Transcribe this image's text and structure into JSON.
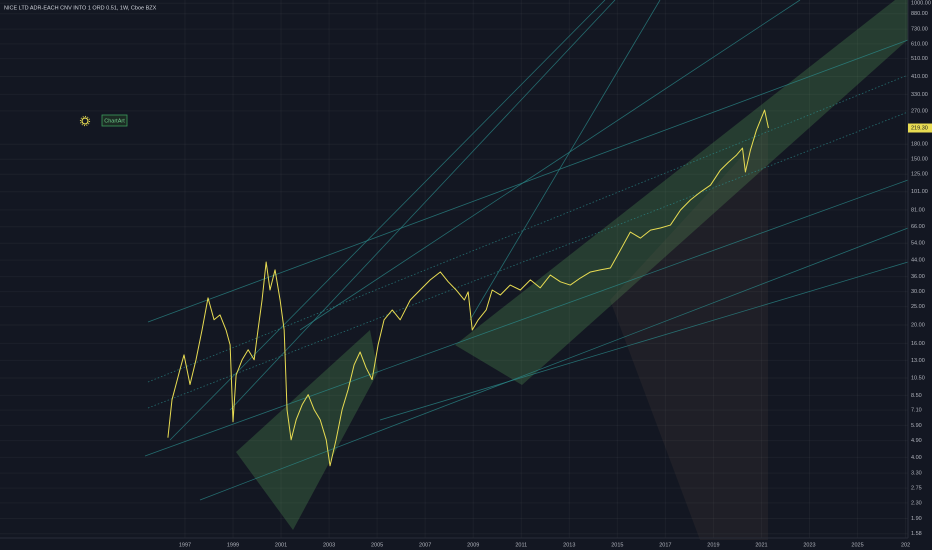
{
  "chart_data": {
    "type": "line",
    "title": "NICE LTD ADR-EACH CNV INTO 1 ORD 0.51, 1W, Cboe BZX",
    "annotation": "ChartArt",
    "color": "#e8dc52",
    "log_scale": true,
    "grid": true,
    "x": [
      1996.29,
      1996.46,
      1996.79,
      1996.96,
      1997.21,
      1997.46,
      1997.71,
      1997.96,
      1998.21,
      1998.46,
      1998.71,
      1998.88,
      1999.0,
      1999.13,
      1999.38,
      1999.63,
      1999.88,
      2000.04,
      2000.21,
      2000.38,
      2000.54,
      2000.75,
      2000.96,
      2001.13,
      2001.25,
      2001.42,
      2001.63,
      2001.88,
      2002.13,
      2002.38,
      2002.63,
      2002.88,
      2003.04,
      2003.29,
      2003.54,
      2003.79,
      2004.04,
      2004.29,
      2004.54,
      2004.79,
      2005.04,
      2005.29,
      2005.63,
      2005.96,
      2006.38,
      2006.79,
      2007.21,
      2007.63,
      2007.96,
      2008.29,
      2008.63,
      2008.79,
      2008.96,
      2009.21,
      2009.54,
      2009.79,
      2010.13,
      2010.54,
      2010.96,
      2011.38,
      2011.79,
      2012.21,
      2012.63,
      2013.04,
      2013.46,
      2013.88,
      2014.29,
      2014.71,
      2015.13,
      2015.54,
      2015.96,
      2016.38,
      2016.79,
      2017.21,
      2017.63,
      2018.04,
      2018.46,
      2018.88,
      2019.29,
      2019.63,
      2019.96,
      2020.21,
      2020.33,
      2020.54,
      2020.79,
      2020.96,
      2021.13,
      2021.29
    ],
    "values": [
      5.08,
      8.05,
      11.6,
      13.9,
      9.7,
      13.1,
      18.8,
      27.8,
      21.3,
      22.6,
      18.8,
      15.7,
      6.17,
      10.9,
      13.1,
      14.8,
      13.1,
      18.8,
      27.1,
      43,
      30.6,
      39.1,
      27.1,
      18.8,
      7.13,
      4.95,
      6.32,
      7.59,
      8.57,
      7.13,
      6.32,
      4.95,
      3.61,
      4.95,
      7.13,
      9.1,
      12.3,
      14.4,
      11.9,
      10.3,
      15.7,
      21.3,
      24,
      21.3,
      27.1,
      30.6,
      34.6,
      38.1,
      33.8,
      30.6,
      27.1,
      29.9,
      18.8,
      21.3,
      24,
      30.6,
      28.8,
      32.5,
      30.6,
      34.6,
      31.4,
      36.7,
      33.8,
      32.5,
      35.4,
      38.1,
      39.1,
      40,
      49.8,
      61.9,
      57.5,
      63.4,
      65,
      67.4,
      80.9,
      91.4,
      100.7,
      109.6,
      131.5,
      144.9,
      157.8,
      171.8,
      128.5,
      167.5,
      213.6,
      241.5,
      272.9,
      219.3
    ],
    "last_price": {
      "value": 219.3,
      "label": "219.30"
    },
    "xlim": [
      1989.3,
      2027.1
    ],
    "xticks": [
      1997,
      1999,
      2001,
      2003,
      2005,
      2007,
      2009,
      2011,
      2013,
      2015,
      2017,
      2019,
      2021,
      2023,
      2025,
      {
        "value": 2027,
        "label": "202"
      }
    ],
    "ylim": [
      1.5,
      1040
    ],
    "yticks": [
      {
        "value": 1000,
        "label": "1000.00"
      },
      {
        "value": 880,
        "label": "880.00"
      },
      {
        "value": 730,
        "label": "730.00"
      },
      {
        "value": 610,
        "label": "610.00"
      },
      {
        "value": 510,
        "label": "510.00"
      },
      {
        "value": 410,
        "label": "410.00"
      },
      {
        "value": 330,
        "label": "330.00"
      },
      {
        "value": 270,
        "label": "270.00"
      },
      {
        "value": 180,
        "label": "180.00"
      },
      {
        "value": 150,
        "label": "150.00"
      },
      {
        "value": 125,
        "label": "125.00"
      },
      {
        "value": 101,
        "label": "101.00"
      },
      {
        "value": 81,
        "label": "81.00"
      },
      {
        "value": 66,
        "label": "66.00"
      },
      {
        "value": 54,
        "label": "54.00"
      },
      {
        "value": 44,
        "label": "44.00"
      },
      {
        "value": 36,
        "label": "36.00"
      },
      {
        "value": 30,
        "label": "30.00"
      },
      {
        "value": 25,
        "label": "25.00"
      },
      {
        "value": 20,
        "label": "20.00"
      },
      {
        "value": 16,
        "label": "16.00"
      },
      {
        "value": 13,
        "label": "13.00"
      },
      {
        "value": 10.5,
        "label": "10.50"
      },
      {
        "value": 8.5,
        "label": "8.50"
      },
      {
        "value": 7.1,
        "label": "7.10"
      },
      {
        "value": 5.9,
        "label": "5.90"
      },
      {
        "value": 4.9,
        "label": "4.90"
      },
      {
        "value": 4,
        "label": "4.00"
      },
      {
        "value": 3.3,
        "label": "3.30"
      },
      {
        "value": 2.75,
        "label": "2.75"
      },
      {
        "value": 2.3,
        "label": "2.30"
      },
      {
        "value": 1.9,
        "label": "1.90"
      },
      {
        "value": 1.58,
        "label": "1.58"
      }
    ]
  }
}
